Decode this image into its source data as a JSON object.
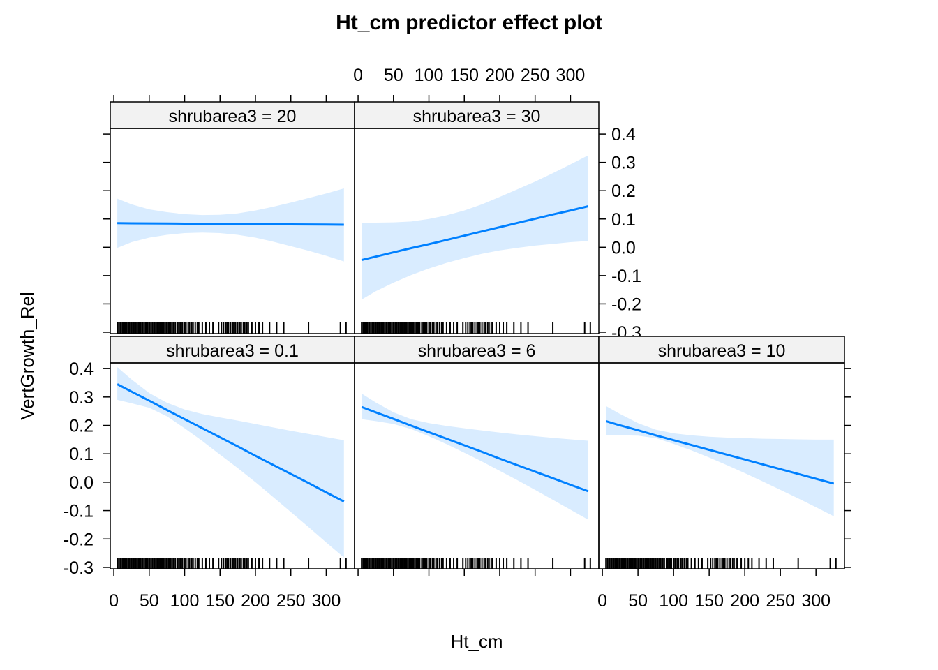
{
  "chart_data": {
    "type": "line",
    "title": "Ht_cm predictor effect plot",
    "xlabel": "Ht_cm",
    "ylabel": "VertGrowth_Rel",
    "xlim": [
      -5,
      340
    ],
    "ylim": [
      -0.305,
      0.42
    ],
    "x_ticks": [
      0,
      50,
      100,
      150,
      200,
      250,
      300
    ],
    "x_tick_labels": [
      "0",
      "50",
      "100",
      "150",
      "200",
      "250",
      "300"
    ],
    "y_ticks": [
      -0.3,
      -0.2,
      -0.1,
      0.0,
      0.1,
      0.2,
      0.3,
      0.4
    ],
    "y_tick_labels": [
      "-0.3",
      "-0.2",
      "-0.1",
      "0.0",
      "0.1",
      "0.2",
      "0.3",
      "0.4"
    ],
    "line_color": "#0080ff",
    "band_color": "#d9ecff",
    "strip_color": "#f2f2f2",
    "rug_x": [
      5,
      7,
      9,
      10,
      12,
      13,
      15,
      16,
      18,
      20,
      21,
      22,
      24,
      25,
      27,
      28,
      30,
      31,
      33,
      35,
      36,
      38,
      40,
      41,
      43,
      45,
      46,
      48,
      50,
      51,
      53,
      55,
      57,
      58,
      60,
      62,
      63,
      65,
      67,
      68,
      70,
      72,
      74,
      75,
      77,
      78,
      80,
      82,
      84,
      85,
      87,
      90,
      92,
      94,
      95,
      97,
      100,
      102,
      105,
      107,
      110,
      112,
      115,
      118,
      120,
      125,
      130,
      135,
      140,
      148,
      152,
      155,
      158,
      160,
      162,
      165,
      168,
      170,
      172,
      175,
      178,
      180,
      183,
      185,
      188,
      190,
      195,
      200,
      205,
      210,
      220,
      230,
      240,
      275,
      320,
      328
    ],
    "panels": [
      {
        "strip": "shrubarea3 = 20",
        "x": [
          5,
          25,
          50,
          75,
          100,
          125,
          150,
          175,
          200,
          225,
          250,
          275,
          300,
          325
        ],
        "fit": [
          0.085,
          0.0847,
          0.0843,
          0.0839,
          0.0835,
          0.0831,
          0.0827,
          0.0822,
          0.0818,
          0.0814,
          0.081,
          0.0806,
          0.0802,
          0.0798
        ],
        "lower": [
          -0.002,
          0.018,
          0.034,
          0.044,
          0.05,
          0.052,
          0.05,
          0.044,
          0.034,
          0.02,
          0.004,
          -0.012,
          -0.03,
          -0.05
        ],
        "upper": [
          0.172,
          0.152,
          0.134,
          0.124,
          0.117,
          0.114,
          0.115,
          0.12,
          0.13,
          0.143,
          0.158,
          0.174,
          0.19,
          0.208
        ]
      },
      {
        "strip": "shrubarea3 = 30",
        "x": [
          5,
          25,
          50,
          75,
          100,
          125,
          150,
          175,
          200,
          225,
          250,
          275,
          300,
          325
        ],
        "fit": [
          -0.045,
          -0.033,
          -0.018,
          -0.003,
          0.011,
          0.026,
          0.041,
          0.056,
          0.071,
          0.086,
          0.101,
          0.116,
          0.13,
          0.145
        ],
        "lower": [
          -0.185,
          -0.155,
          -0.125,
          -0.098,
          -0.075,
          -0.055,
          -0.038,
          -0.023,
          -0.011,
          -0.002,
          0.006,
          0.012,
          0.018,
          0.022
        ],
        "upper": [
          0.087,
          0.087,
          0.088,
          0.091,
          0.1,
          0.113,
          0.13,
          0.152,
          0.178,
          0.205,
          0.232,
          0.262,
          0.293,
          0.325
        ]
      },
      {
        "strip": "shrubarea3 = 0.1",
        "x": [
          5,
          25,
          50,
          75,
          100,
          125,
          150,
          175,
          200,
          225,
          250,
          275,
          300,
          325
        ],
        "fit": [
          0.345,
          0.319,
          0.287,
          0.254,
          0.222,
          0.19,
          0.158,
          0.126,
          0.093,
          0.061,
          0.029,
          -0.003,
          -0.036,
          -0.068
        ],
        "lower": [
          0.29,
          0.278,
          0.262,
          0.232,
          0.19,
          0.145,
          0.097,
          0.05,
          0.0,
          -0.052,
          -0.105,
          -0.158,
          -0.212,
          -0.265
        ],
        "upper": [
          0.405,
          0.362,
          0.314,
          0.28,
          0.256,
          0.24,
          0.228,
          0.217,
          0.205,
          0.193,
          0.181,
          0.17,
          0.159,
          0.148
        ]
      },
      {
        "strip": "shrubarea3 = 6",
        "x": [
          5,
          25,
          50,
          75,
          100,
          125,
          150,
          175,
          200,
          225,
          250,
          275,
          300,
          325
        ],
        "fit": [
          0.265,
          0.246,
          0.223,
          0.199,
          0.176,
          0.153,
          0.13,
          0.107,
          0.083,
          0.06,
          0.037,
          0.014,
          -0.009,
          -0.032
        ],
        "lower": [
          0.222,
          0.215,
          0.205,
          0.187,
          0.162,
          0.134,
          0.104,
          0.073,
          0.04,
          0.007,
          -0.027,
          -0.062,
          -0.097,
          -0.132
        ],
        "upper": [
          0.312,
          0.281,
          0.246,
          0.222,
          0.208,
          0.198,
          0.19,
          0.182,
          0.175,
          0.168,
          0.162,
          0.156,
          0.151,
          0.146
        ]
      },
      {
        "strip": "shrubarea3 = 10",
        "x": [
          5,
          25,
          50,
          75,
          100,
          125,
          150,
          175,
          200,
          225,
          250,
          275,
          300,
          325
        ],
        "fit": [
          0.215,
          0.2,
          0.183,
          0.165,
          0.148,
          0.131,
          0.114,
          0.097,
          0.08,
          0.063,
          0.046,
          0.029,
          0.012,
          -0.005
        ],
        "lower": [
          0.165,
          0.165,
          0.164,
          0.155,
          0.135,
          0.112,
          0.087,
          0.06,
          0.032,
          0.003,
          -0.027,
          -0.057,
          -0.088,
          -0.12
        ],
        "upper": [
          0.268,
          0.24,
          0.208,
          0.185,
          0.172,
          0.165,
          0.16,
          0.157,
          0.155,
          0.153,
          0.152,
          0.151,
          0.15,
          0.15
        ]
      }
    ]
  }
}
